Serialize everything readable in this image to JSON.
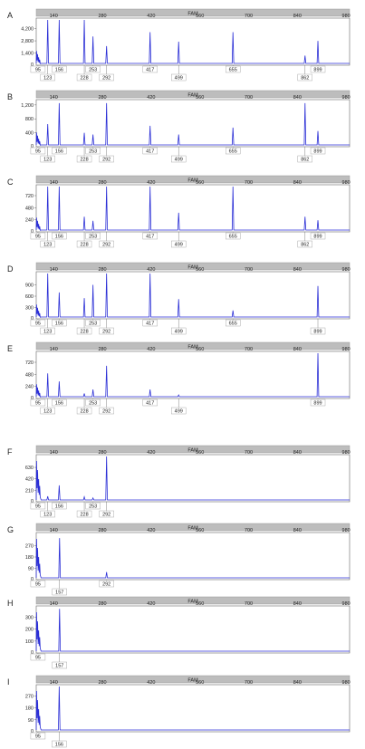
{
  "chart_data": [
    {
      "panel": "A",
      "type": "line",
      "channel": "FAM",
      "x_ticks": [
        140,
        280,
        420,
        560,
        700,
        840,
        980
      ],
      "y_ticks": [
        1400,
        2800,
        4200
      ],
      "y_tick_labels": [
        "1,400",
        "2,800",
        "4,200"
      ],
      "ylim": [
        0,
        5200
      ],
      "peaks": [
        {
          "x": 95,
          "y": 600,
          "label": "95"
        },
        {
          "x": 123,
          "y": 5200,
          "label": "123"
        },
        {
          "x": 156,
          "y": 5200,
          "label": "156"
        },
        {
          "x": 228,
          "y": 5200,
          "label": "228"
        },
        {
          "x": 253,
          "y": 3300,
          "label": "253"
        },
        {
          "x": 292,
          "y": 2200,
          "label": "292"
        },
        {
          "x": 417,
          "y": 3800,
          "label": "417"
        },
        {
          "x": 499,
          "y": 2700,
          "label": "499"
        },
        {
          "x": 655,
          "y": 3800,
          "label": "655"
        },
        {
          "x": 862,
          "y": 1100,
          "label": "862"
        },
        {
          "x": 899,
          "y": 2800,
          "label": "899"
        }
      ]
    },
    {
      "panel": "B",
      "type": "line",
      "channel": "FAM",
      "x_ticks": [
        140,
        280,
        420,
        560,
        700,
        840,
        980
      ],
      "y_ticks": [
        400,
        800,
        1200
      ],
      "y_tick_labels": [
        "400",
        "800",
        "1,200"
      ],
      "ylim": [
        0,
        1300
      ],
      "peaks": [
        {
          "x": 95,
          "y": 450,
          "label": "95"
        },
        {
          "x": 123,
          "y": 650,
          "label": "123"
        },
        {
          "x": 156,
          "y": 1250,
          "label": "156"
        },
        {
          "x": 228,
          "y": 400,
          "label": "228"
        },
        {
          "x": 253,
          "y": 350,
          "label": "253"
        },
        {
          "x": 292,
          "y": 1250,
          "label": "292"
        },
        {
          "x": 417,
          "y": 600,
          "label": "417"
        },
        {
          "x": 499,
          "y": 350,
          "label": "499"
        },
        {
          "x": 655,
          "y": 550,
          "label": "655"
        },
        {
          "x": 862,
          "y": 1250,
          "label": "862"
        },
        {
          "x": 899,
          "y": 450,
          "label": "899"
        }
      ]
    },
    {
      "panel": "C",
      "type": "line",
      "channel": "FAM",
      "x_ticks": [
        140,
        280,
        420,
        560,
        700,
        840,
        980
      ],
      "y_ticks": [
        240,
        480,
        720
      ],
      "y_tick_labels": [
        "240",
        "480",
        "720"
      ],
      "ylim": [
        0,
        900
      ],
      "peaks": [
        {
          "x": 95,
          "y": 800,
          "label": "95"
        },
        {
          "x": 123,
          "y": 900,
          "label": "123"
        },
        {
          "x": 156,
          "y": 900,
          "label": "156"
        },
        {
          "x": 228,
          "y": 300,
          "label": "228"
        },
        {
          "x": 253,
          "y": 220,
          "label": "253"
        },
        {
          "x": 292,
          "y": 900,
          "label": "292"
        },
        {
          "x": 417,
          "y": 900,
          "label": "417"
        },
        {
          "x": 499,
          "y": 380,
          "label": "499"
        },
        {
          "x": 655,
          "y": 900,
          "label": "655"
        },
        {
          "x": 862,
          "y": 300,
          "label": "862"
        },
        {
          "x": 899,
          "y": 230,
          "label": "899"
        }
      ]
    },
    {
      "panel": "D",
      "type": "line",
      "channel": "FAM",
      "x_ticks": [
        140,
        280,
        420,
        560,
        700,
        840,
        980
      ],
      "y_ticks": [
        300,
        600,
        900
      ],
      "y_tick_labels": [
        "300",
        "600",
        "900"
      ],
      "ylim": [
        0,
        1200
      ],
      "peaks": [
        {
          "x": 95,
          "y": 700,
          "label": "95"
        },
        {
          "x": 123,
          "y": 1200,
          "label": "123"
        },
        {
          "x": 156,
          "y": 700,
          "label": "156"
        },
        {
          "x": 228,
          "y": 550,
          "label": "228"
        },
        {
          "x": 253,
          "y": 900,
          "label": "253"
        },
        {
          "x": 292,
          "y": 1200,
          "label": "292"
        },
        {
          "x": 417,
          "y": 1200,
          "label": "417"
        },
        {
          "x": 499,
          "y": 520,
          "label": "499"
        },
        {
          "x": 655,
          "y": 220,
          "label": "655"
        },
        {
          "x": 899,
          "y": 870,
          "label": "899"
        }
      ]
    },
    {
      "panel": "E",
      "type": "line",
      "channel": "FAM",
      "x_ticks": [
        140,
        280,
        420,
        560,
        700,
        840,
        980
      ],
      "y_ticks": [
        240,
        480,
        720
      ],
      "y_tick_labels": [
        "240",
        "480",
        "720"
      ],
      "ylim": [
        0,
        900
      ],
      "peaks": [
        {
          "x": 95,
          "y": 900,
          "label": "95"
        },
        {
          "x": 123,
          "y": 500,
          "label": "123"
        },
        {
          "x": 156,
          "y": 340,
          "label": "156"
        },
        {
          "x": 228,
          "y": 100,
          "label": "228"
        },
        {
          "x": 253,
          "y": 180,
          "label": "253"
        },
        {
          "x": 292,
          "y": 650,
          "label": "292"
        },
        {
          "x": 417,
          "y": 180,
          "label": "417"
        },
        {
          "x": 499,
          "y": 70,
          "label": "499"
        },
        {
          "x": 899,
          "y": 900,
          "label": "899"
        }
      ]
    },
    {
      "panel": "F",
      "type": "line",
      "channel": "FAM",
      "x_ticks": [
        140,
        280,
        420,
        560,
        700,
        840,
        980
      ],
      "y_ticks": [
        210,
        420,
        630
      ],
      "y_tick_labels": [
        "210",
        "420",
        "630"
      ],
      "ylim": [
        0,
        830
      ],
      "peaks": [
        {
          "x": 95,
          "y": 830,
          "label": "95"
        },
        {
          "x": 123,
          "y": 100,
          "label": "123"
        },
        {
          "x": 156,
          "y": 300,
          "label": "156"
        },
        {
          "x": 228,
          "y": 90,
          "label": "228"
        },
        {
          "x": 253,
          "y": 70,
          "label": "253"
        },
        {
          "x": 292,
          "y": 830,
          "label": "292"
        }
      ]
    },
    {
      "panel": "G",
      "type": "line",
      "channel": "FAM",
      "x_ticks": [
        140,
        280,
        420,
        560,
        700,
        840,
        980
      ],
      "y_ticks": [
        90,
        180,
        270
      ],
      "y_tick_labels": [
        "90",
        "180",
        "270"
      ],
      "ylim": [
        0,
        360
      ],
      "peaks": [
        {
          "x": 95,
          "y": 360,
          "label": "95"
        },
        {
          "x": 157,
          "y": 330,
          "label": "157"
        },
        {
          "x": 292,
          "y": 60,
          "label": "292"
        }
      ]
    },
    {
      "panel": "H",
      "type": "line",
      "channel": "FAM",
      "x_ticks": [
        140,
        280,
        420,
        560,
        700,
        840,
        980
      ],
      "y_ticks": [
        100,
        200,
        300
      ],
      "y_tick_labels": [
        "100",
        "200",
        "300"
      ],
      "ylim": [
        0,
        380
      ],
      "peaks": [
        {
          "x": 95,
          "y": 380,
          "label": "95"
        },
        {
          "x": 157,
          "y": 370,
          "label": "157"
        }
      ]
    },
    {
      "panel": "I",
      "type": "line",
      "channel": "FAM",
      "x_ticks": [
        140,
        280,
        420,
        560,
        700,
        840,
        980
      ],
      "y_ticks": [
        90,
        180,
        270
      ],
      "y_tick_labels": [
        "90",
        "180",
        "270"
      ],
      "ylim": [
        0,
        340
      ],
      "peaks": [
        {
          "x": 95,
          "y": 340,
          "label": "95"
        },
        {
          "x": 156,
          "y": 340,
          "label": "156"
        }
      ]
    }
  ],
  "colors": {
    "trace": "#2b2fd6",
    "header_bar": "#bdbdbd",
    "frame": "#666666",
    "text": "#222222"
  }
}
